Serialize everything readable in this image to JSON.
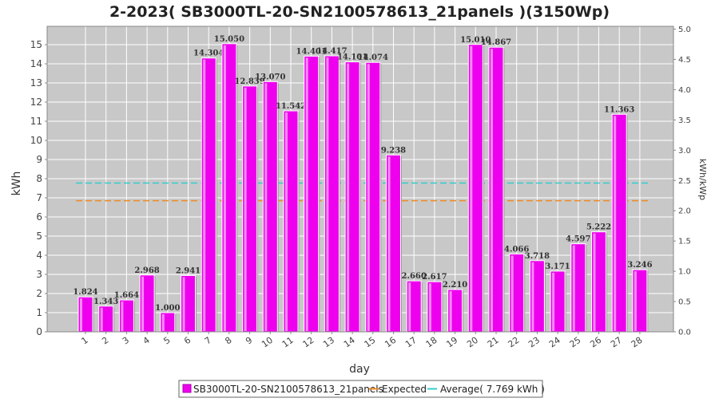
{
  "chart_data": {
    "type": "bar",
    "title": "2-2023( SB3000TL-20-SN2100578613_21panels )(3150Wp)",
    "xlabel": "day",
    "ylabel": "kWh",
    "y2label": "kWh/kWp",
    "ylim": [
      0,
      16
    ],
    "y2lim": [
      0,
      5.0
    ],
    "yticks": [
      "0",
      "1",
      "2",
      "3",
      "4",
      "5",
      "6",
      "7",
      "8",
      "9",
      "10",
      "11",
      "12",
      "13",
      "14",
      "15"
    ],
    "y2ticks": [
      "0.0",
      "0.5",
      "1.0",
      "1.5",
      "2.0",
      "2.5",
      "3.0",
      "3.5",
      "4.0",
      "4.5",
      "5.0"
    ],
    "categories": [
      "1",
      "2",
      "3",
      "4",
      "5",
      "6",
      "7",
      "8",
      "9",
      "10",
      "11",
      "12",
      "13",
      "14",
      "15",
      "16",
      "17",
      "18",
      "19",
      "20",
      "21",
      "22",
      "23",
      "24",
      "25",
      "26",
      "27",
      "28"
    ],
    "series": [
      {
        "name": "SB3000TL-20-SN2100578613_21panels",
        "values": [
          1.824,
          1.343,
          1.664,
          2.968,
          1.0,
          2.941,
          14.304,
          15.05,
          12.839,
          13.07,
          11.542,
          14.401,
          14.417,
          14.101,
          14.074,
          9.238,
          2.66,
          2.617,
          2.21,
          15.01,
          14.867,
          4.066,
          3.718,
          3.171,
          4.597,
          5.222,
          11.363,
          3.246
        ],
        "labels": [
          "1.824",
          "1.343",
          "1.664",
          "2.968",
          "1.000",
          "2.941",
          "14.304",
          "15.050",
          "12.839",
          "13.070",
          "11.542",
          "14.401",
          "14.417",
          "14.101",
          "14.074",
          "9.238",
          "2.660",
          "2.617",
          "2.210",
          "15.010",
          "14.867",
          "4.066",
          "3.718",
          "3.171",
          "4.597",
          "5.222",
          "11.363",
          "3.246"
        ]
      }
    ],
    "expected": {
      "name": "Expected",
      "value": 6.85
    },
    "average": {
      "name": "Average( 7.769 kWh )",
      "value": 7.769
    },
    "colors": {
      "bar": "#ee00ee",
      "bar_edge": "#aa00aa",
      "expected": "#f08a24",
      "average": "#33cccc",
      "plot_bg": "#c8c8c8",
      "grid": "#ffffff"
    },
    "grid": true,
    "legend_position": "bottom"
  }
}
